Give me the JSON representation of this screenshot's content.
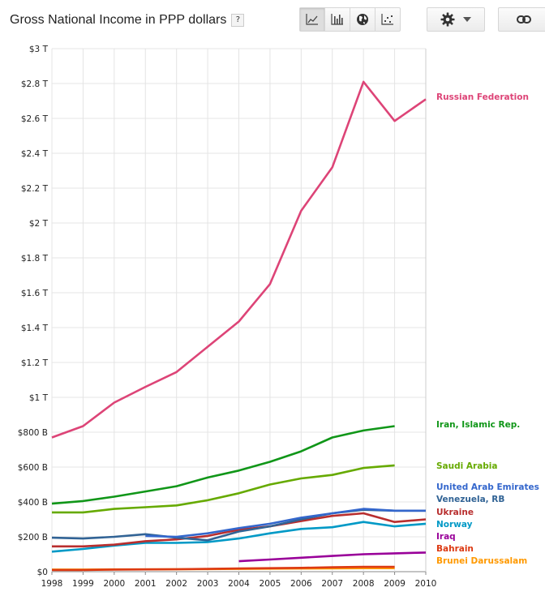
{
  "header": {
    "title": "Gross National Income in PPP dollars",
    "help": "?"
  },
  "toolbar": {
    "views": [
      {
        "name": "line-chart-button",
        "icon": "line-chart-icon",
        "active": true
      },
      {
        "name": "bar-chart-button",
        "icon": "bar-chart-icon",
        "active": false
      },
      {
        "name": "map-button",
        "icon": "globe-icon",
        "active": false
      },
      {
        "name": "scatter-button",
        "icon": "scatter-icon",
        "active": false
      }
    ],
    "settings_icon": "gear-icon",
    "link_icon": "link-icon"
  },
  "chart_data": {
    "type": "line",
    "title": "Gross National Income in PPP dollars",
    "xlabel": "",
    "ylabel": "",
    "x": [
      1998,
      1999,
      2000,
      2001,
      2002,
      2003,
      2004,
      2005,
      2006,
      2007,
      2008,
      2009,
      2010
    ],
    "xlim": [
      1998,
      2010
    ],
    "ylim": [
      0,
      3
    ],
    "y_ticks": [
      "$0",
      "$200 B",
      "$400 B",
      "$600 B",
      "$800 B",
      "$1 T",
      "$1.2 T",
      "$1.4 T",
      "$1.6 T",
      "$1.8 T",
      "$2 T",
      "$2.2 T",
      "$2.4 T",
      "$2.6 T",
      "$2.8 T",
      "$3 T"
    ],
    "y_unit": "trillion PPP dollars",
    "grid": true,
    "legend": "right (labels at series ends)",
    "series": [
      {
        "name": "Russian Federation",
        "color": "#dd4477",
        "values": [
          0.77,
          0.835,
          0.97,
          1.06,
          1.145,
          1.29,
          1.435,
          1.65,
          2.07,
          2.32,
          2.81,
          2.585,
          2.71
        ]
      },
      {
        "name": "Iran, Islamic Rep.",
        "color": "#109618",
        "values": [
          0.39,
          0.405,
          0.43,
          0.46,
          0.49,
          0.54,
          0.58,
          0.63,
          0.69,
          0.77,
          0.81,
          0.835,
          null
        ]
      },
      {
        "name": "Saudi Arabia",
        "color": "#66aa00",
        "values": [
          0.34,
          0.34,
          0.36,
          0.37,
          0.38,
          0.41,
          0.45,
          0.5,
          0.535,
          0.555,
          0.595,
          0.61,
          null
        ]
      },
      {
        "name": "United Arab Emirates",
        "color": "#3366cc",
        "values": [
          null,
          null,
          null,
          0.205,
          0.2,
          0.22,
          0.25,
          0.275,
          0.31,
          0.335,
          0.36,
          0.35,
          0.35
        ]
      },
      {
        "name": "Venezuela, RB",
        "color": "#316395",
        "values": [
          0.195,
          0.19,
          0.2,
          0.215,
          0.195,
          0.18,
          0.23,
          0.26,
          0.3,
          0.335,
          0.355,
          0.35,
          0.35
        ]
      },
      {
        "name": "Ukraine",
        "color": "#b82e2e",
        "values": [
          0.145,
          0.145,
          0.155,
          0.175,
          0.185,
          0.205,
          0.24,
          0.26,
          0.29,
          0.32,
          0.335,
          0.285,
          0.3
        ]
      },
      {
        "name": "Norway",
        "color": "#0099c6",
        "values": [
          0.115,
          0.13,
          0.15,
          0.165,
          0.165,
          0.17,
          0.19,
          0.22,
          0.245,
          0.255,
          0.285,
          0.26,
          0.275
        ]
      },
      {
        "name": "Iraq",
        "color": "#990099",
        "values": [
          null,
          null,
          null,
          null,
          null,
          null,
          0.06,
          0.07,
          0.08,
          0.09,
          0.1,
          0.105,
          0.11
        ]
      },
      {
        "name": "Bahrain",
        "color": "#dc3912",
        "values": [
          0.01,
          0.01,
          0.012,
          0.013,
          0.014,
          0.016,
          0.018,
          0.02,
          0.022,
          0.025,
          0.028,
          0.028,
          null
        ]
      },
      {
        "name": "Brunei Darussalam",
        "color": "#ff9900",
        "values": [
          0.012,
          0.012,
          0.013,
          0.013,
          0.014,
          0.015,
          0.016,
          0.017,
          0.018,
          0.019,
          0.02,
          0.02,
          null
        ]
      }
    ]
  }
}
